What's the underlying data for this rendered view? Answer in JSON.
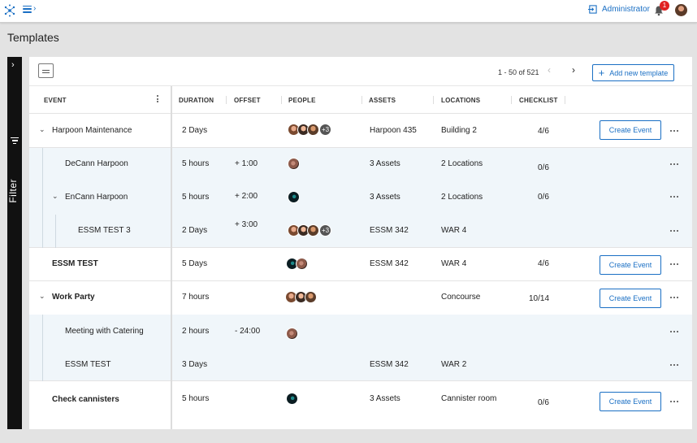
{
  "app": {
    "admin_label": "Administrator",
    "notification_count": "1",
    "page_title": "Templates"
  },
  "filter": {
    "label": "Filter"
  },
  "toolbar": {
    "pagination": "1 - 50 of 521",
    "add_label": "Add new template"
  },
  "columns": {
    "event": "EVENT",
    "duration": "DURATION",
    "offset": "OFFSET",
    "people": "PEOPLE",
    "assets": "ASSETS",
    "locations": "LOCATIONS",
    "checklist": "CHECKLIST"
  },
  "rows": [
    {
      "event": "Harpoon Maintenance",
      "duration": "2 Days",
      "offset": "",
      "people_more": "+3",
      "assets": "Harpoon 435",
      "locations": "Building 2",
      "checklist": "4/6",
      "action": "Create Event"
    },
    {
      "event": "DeCann Harpoon",
      "duration": "5 hours",
      "offset": "+ 1:00",
      "assets": "3 Assets",
      "locations": "2 Locations",
      "checklist": "0/6"
    },
    {
      "event": "EnCann Harpoon",
      "duration": "5 hours",
      "offset": "+ 2:00",
      "assets": "3 Assets",
      "locations": "2 Locations",
      "checklist": "0/6"
    },
    {
      "event": "ESSM TEST 3",
      "duration": "2 Days",
      "offset": "+ 3:00",
      "people_more": "+3",
      "assets": "ESSM 342",
      "locations": "WAR 4",
      "checklist": ""
    },
    {
      "event": "ESSM TEST",
      "duration": "5 Days",
      "offset": "",
      "assets": "ESSM 342",
      "locations": "WAR 4",
      "checklist": "4/6",
      "action": "Create Event"
    },
    {
      "event": "Work Party",
      "duration": "7 hours",
      "offset": "",
      "assets": "",
      "locations": "Concourse",
      "checklist": "10/14",
      "action": "Create Event"
    },
    {
      "event": "Meeting with  Catering",
      "duration": "2 hours",
      "offset": "- 24:00",
      "assets": "",
      "locations": "",
      "checklist": ""
    },
    {
      "event": "ESSM TEST",
      "duration": "3 Days",
      "offset": "",
      "assets": "ESSM 342",
      "locations": "WAR 2",
      "checklist": ""
    },
    {
      "event": "Check cannisters",
      "duration": "5 hours",
      "offset": "",
      "assets": "3 Assets",
      "locations": "Cannister room",
      "checklist": "0/6",
      "action": "Create Event"
    }
  ],
  "colors": {
    "accent": "#1a6fc4",
    "child_row_bg": "#f0f6fa",
    "badge": "#e02020"
  }
}
